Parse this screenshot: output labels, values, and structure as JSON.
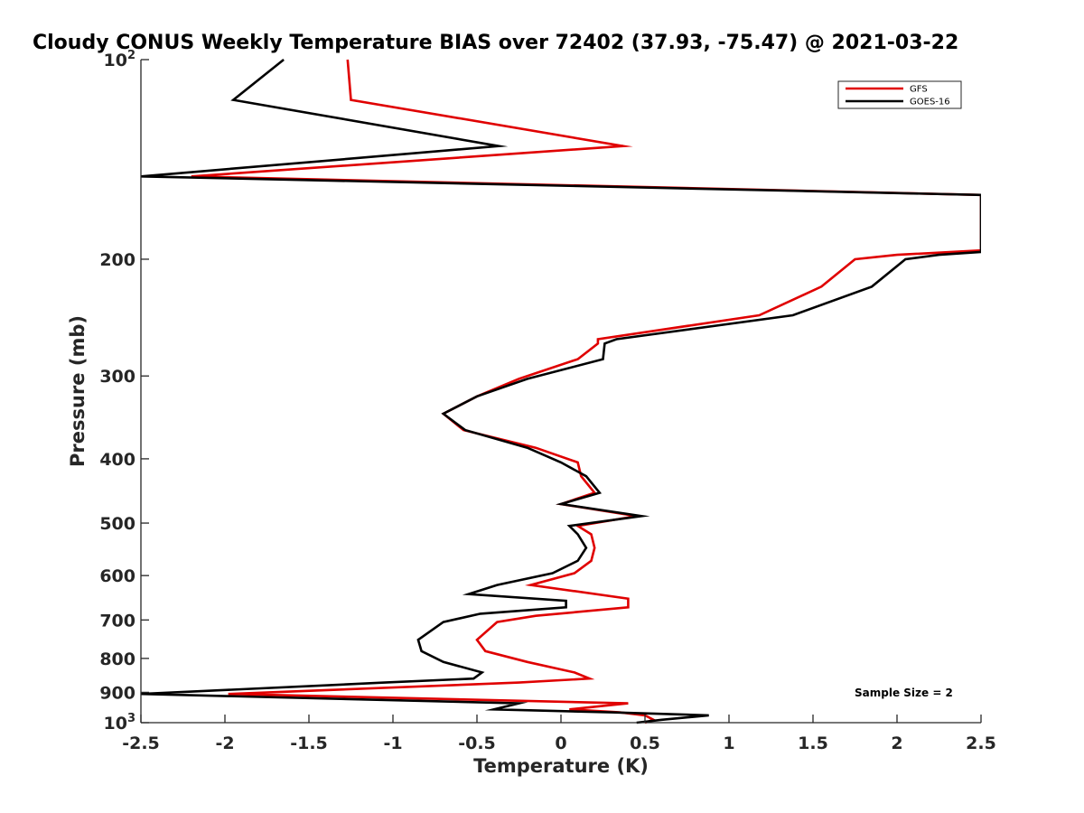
{
  "chart_data": {
    "type": "line",
    "title": "Cloudy CONUS Weekly Temperature BIAS over 72402 (37.93, -75.47) @ 2021-03-22",
    "xlabel": "Temperature (K)",
    "ylabel": "Pressure (mb)",
    "xlim": [
      -2.5,
      2.5
    ],
    "ylim": [
      100,
      1000
    ],
    "y_scale": "log",
    "y_reversed": true,
    "grid": false,
    "legend_position": "top-right",
    "x_ticks": [
      "-2.5",
      "-2",
      "-1.5",
      "-1",
      "-0.5",
      "0",
      "0.5",
      "1",
      "1.5",
      "2",
      "2.5"
    ],
    "y_ticks": [
      {
        "value": 100,
        "base": "10",
        "exp": "2"
      },
      {
        "value": 200,
        "label": "200"
      },
      {
        "value": 300,
        "label": "300"
      },
      {
        "value": 400,
        "label": "400"
      },
      {
        "value": 500,
        "label": "500"
      },
      {
        "value": 600,
        "label": "600"
      },
      {
        "value": 700,
        "label": "700"
      },
      {
        "value": 800,
        "label": "800"
      },
      {
        "value": 900,
        "label": "900"
      },
      {
        "value": 1000,
        "base": "10",
        "exp": "3"
      }
    ],
    "annotation": "Sample Size = 2",
    "series": [
      {
        "name": "GFS",
        "color": "#e00000",
        "points": [
          [
            -1.27,
            100
          ],
          [
            -1.25,
            115
          ],
          [
            0.37,
            135
          ],
          [
            -2.2,
            150
          ],
          [
            2.5,
            160
          ],
          [
            2.5,
            194
          ],
          [
            2.0,
            197
          ],
          [
            1.75,
            200
          ],
          [
            1.55,
            220
          ],
          [
            1.18,
            243
          ],
          [
            0.22,
            264
          ],
          [
            0.22,
            268
          ],
          [
            0.1,
            283
          ],
          [
            -0.25,
            303
          ],
          [
            -0.5,
            322
          ],
          [
            -0.7,
            342
          ],
          [
            -0.58,
            362
          ],
          [
            -0.15,
            385
          ],
          [
            0.1,
            405
          ],
          [
            0.12,
            425
          ],
          [
            0.2,
            450
          ],
          [
            0.0,
            468
          ],
          [
            0.45,
            488
          ],
          [
            0.1,
            505
          ],
          [
            0.18,
            520
          ],
          [
            0.2,
            545
          ],
          [
            0.18,
            570
          ],
          [
            0.08,
            595
          ],
          [
            -0.18,
            620
          ],
          [
            0.4,
            650
          ],
          [
            0.4,
            670
          ],
          [
            -0.15,
            690
          ],
          [
            -0.38,
            705
          ],
          [
            -0.5,
            750
          ],
          [
            -0.45,
            780
          ],
          [
            -0.2,
            810
          ],
          [
            0.08,
            840
          ],
          [
            0.17,
            858
          ],
          [
            -0.25,
            870
          ],
          [
            -1.98,
            905
          ],
          [
            0.4,
            935
          ],
          [
            0.05,
            955
          ],
          [
            0.35,
            965
          ],
          [
            0.5,
            975
          ],
          [
            0.55,
            990
          ],
          [
            0.5,
            1000
          ]
        ]
      },
      {
        "name": "GOES-16",
        "color": "#000000",
        "points": [
          [
            -1.65,
            100
          ],
          [
            -1.95,
            115
          ],
          [
            -0.37,
            135
          ],
          [
            -2.5,
            150
          ],
          [
            2.5,
            160
          ],
          [
            2.5,
            195
          ],
          [
            2.25,
            197
          ],
          [
            2.05,
            200
          ],
          [
            1.85,
            220
          ],
          [
            1.38,
            243
          ],
          [
            0.33,
            264
          ],
          [
            0.26,
            268
          ],
          [
            0.25,
            283
          ],
          [
            -0.2,
            303
          ],
          [
            -0.5,
            322
          ],
          [
            -0.7,
            342
          ],
          [
            -0.57,
            362
          ],
          [
            -0.2,
            385
          ],
          [
            0.0,
            405
          ],
          [
            0.15,
            425
          ],
          [
            0.23,
            450
          ],
          [
            0.0,
            468
          ],
          [
            0.48,
            488
          ],
          [
            0.05,
            505
          ],
          [
            0.1,
            520
          ],
          [
            0.15,
            545
          ],
          [
            0.1,
            570
          ],
          [
            -0.05,
            595
          ],
          [
            -0.38,
            620
          ],
          [
            -0.55,
            640
          ],
          [
            0.03,
            655
          ],
          [
            0.03,
            670
          ],
          [
            -0.48,
            685
          ],
          [
            -0.7,
            705
          ],
          [
            -0.85,
            750
          ],
          [
            -0.83,
            780
          ],
          [
            -0.7,
            810
          ],
          [
            -0.47,
            840
          ],
          [
            -0.52,
            858
          ],
          [
            -1.05,
            870
          ],
          [
            -2.5,
            905
          ],
          [
            -0.25,
            935
          ],
          [
            -0.4,
            955
          ],
          [
            0.3,
            965
          ],
          [
            0.88,
            975
          ],
          [
            0.6,
            990
          ],
          [
            0.45,
            1000
          ]
        ]
      }
    ]
  }
}
